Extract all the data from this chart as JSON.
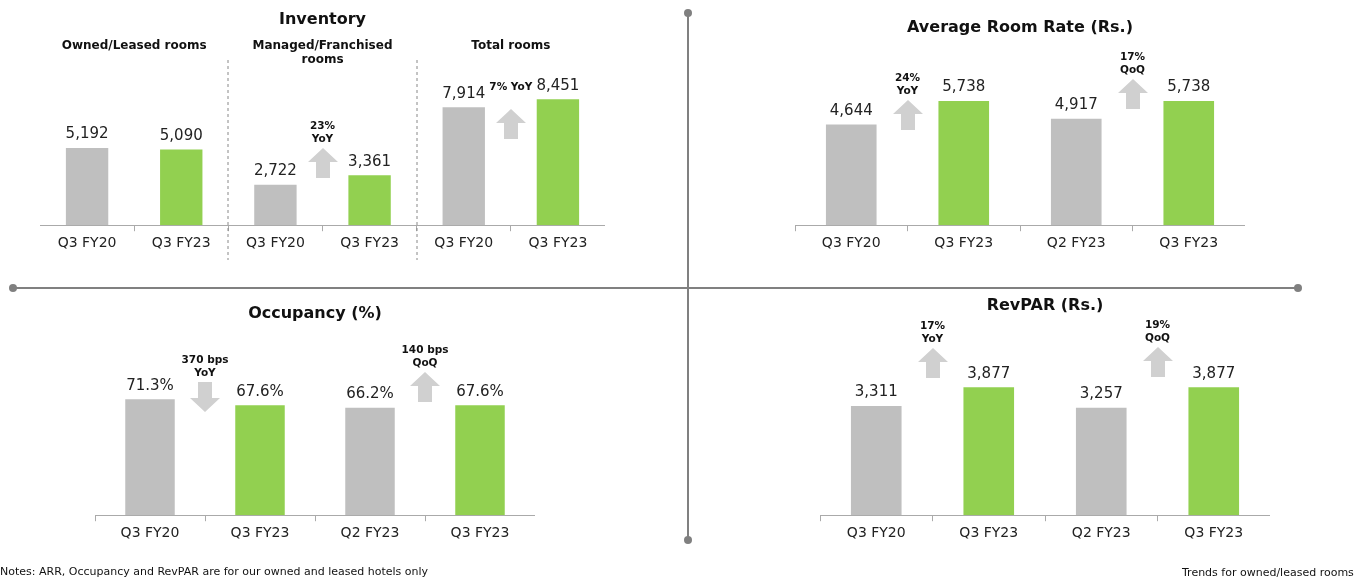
{
  "chart_data": [
    {
      "type": "bar",
      "title": "Inventory",
      "categories": [
        "Q3 FY20",
        "Q3 FY23",
        "Q3 FY20",
        "Q3 FY23",
        "Q3 FY20",
        "Q3 FY23"
      ],
      "values": [
        5192,
        5090,
        2722,
        3361,
        7914,
        8451
      ],
      "colors": [
        "#bfbfbf",
        "#92d050",
        "#bfbfbf",
        "#92d050",
        "#bfbfbf",
        "#92d050"
      ],
      "value_labels": [
        "5,192",
        "5,090",
        "2,722",
        "3,361",
        "7,914",
        "8,451"
      ],
      "annotations": [
        "Owned/Leased rooms",
        "Managed/Franchised rooms",
        "Total rooms",
        "23% YoY",
        "7% YoY"
      ]
    },
    {
      "type": "bar",
      "title": "Average Room Rate (Rs.)",
      "categories": [
        "Q3 FY20",
        "Q3 FY23",
        "Q2 FY23",
        "Q3 FY23"
      ],
      "values": [
        4644,
        5738,
        4917,
        5738
      ],
      "colors": [
        "#bfbfbf",
        "#92d050",
        "#bfbfbf",
        "#92d050"
      ],
      "value_labels": [
        "4,644",
        "5,738",
        "4,917",
        "5,738"
      ],
      "annotations": [
        "24% YoY",
        "17% QoQ"
      ]
    },
    {
      "type": "bar",
      "title": "Occupancy (%)",
      "categories": [
        "Q3 FY20",
        "Q3 FY23",
        "Q2 FY23",
        "Q3 FY23"
      ],
      "values": [
        71.3,
        67.6,
        66.2,
        67.6
      ],
      "colors": [
        "#bfbfbf",
        "#92d050",
        "#bfbfbf",
        "#92d050"
      ],
      "value_labels": [
        "71.3%",
        "67.6%",
        "66.2%",
        "67.6%"
      ],
      "annotations": [
        "370 bps YoY",
        "140 bps QoQ"
      ]
    },
    {
      "type": "bar",
      "title": "RevPAR (Rs.)",
      "categories": [
        "Q3 FY20",
        "Q3 FY23",
        "Q2 FY23",
        "Q3 FY23"
      ],
      "values": [
        3311,
        3877,
        3257,
        3877
      ],
      "colors": [
        "#bfbfbf",
        "#92d050",
        "#bfbfbf",
        "#92d050"
      ],
      "value_labels": [
        "3,311",
        "3,877",
        "3,257",
        "3,877"
      ],
      "annotations": [
        "17% YoY",
        "19% QoQ",
        "Notes: ARR, Occupancy and RevPAR are for our owned and leased hotels only",
        "Trends for owned/leased rooms"
      ]
    }
  ]
}
